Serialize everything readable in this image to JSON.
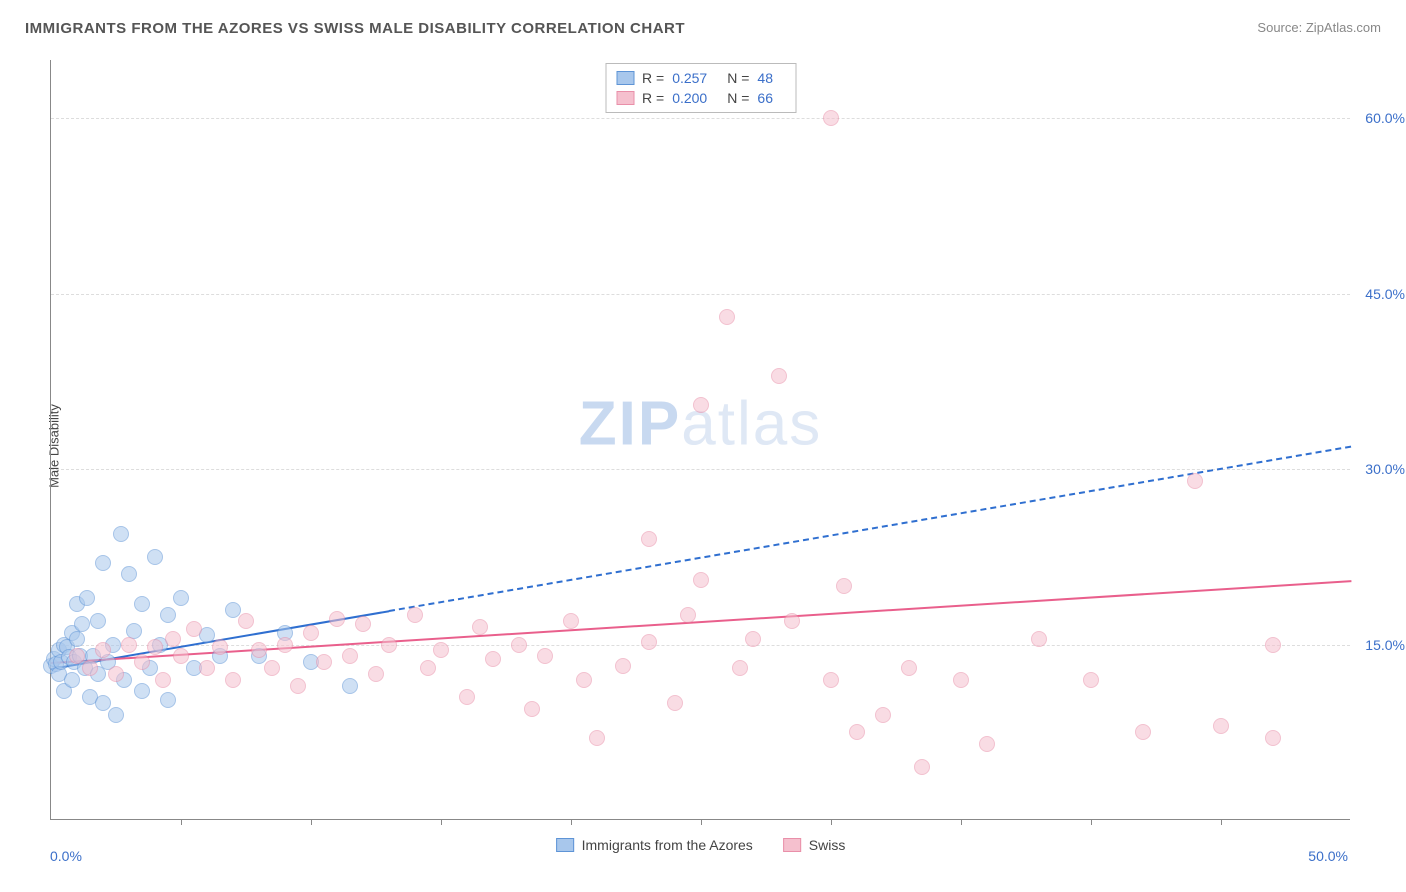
{
  "title": "IMMIGRANTS FROM THE AZORES VS SWISS MALE DISABILITY CORRELATION CHART",
  "source_label": "Source:",
  "source_name": "ZipAtlas.com",
  "ylabel": "Male Disability",
  "watermark_a": "ZIP",
  "watermark_b": "atlas",
  "chart": {
    "type": "scatter",
    "xlim": [
      0,
      50
    ],
    "ylim": [
      0,
      65
    ],
    "x_start_label": "0.0%",
    "x_end_label": "50.0%",
    "xtick_positions_pct": [
      10,
      20,
      30,
      40,
      50,
      60,
      70,
      80,
      90
    ],
    "y_gridlines": [
      15,
      30,
      45,
      60
    ],
    "y_labels": [
      "15.0%",
      "30.0%",
      "45.0%",
      "60.0%"
    ],
    "background_color": "#ffffff",
    "grid_color": "#dddddd",
    "axis_color": "#888888",
    "tick_label_color": "#3b6fc9",
    "marker_radius": 8,
    "marker_opacity": 0.55,
    "series": [
      {
        "name": "Immigrants from the Azores",
        "fill": "#a8c7ec",
        "stroke": "#5e94d6",
        "R": "0.257",
        "N": "48",
        "trend": {
          "x1": 0,
          "y1": 13.0,
          "x2": 50,
          "y2": 32.0,
          "solid_until_x": 13,
          "color": "#2f6fd0",
          "width": 2.5,
          "dash": "6,5"
        },
        "points": [
          [
            0.0,
            13.2
          ],
          [
            0.1,
            13.8
          ],
          [
            0.2,
            13.3
          ],
          [
            0.3,
            14.5
          ],
          [
            0.3,
            12.5
          ],
          [
            0.4,
            13.5
          ],
          [
            0.5,
            15.0
          ],
          [
            0.5,
            11.0
          ],
          [
            0.6,
            14.8
          ],
          [
            0.7,
            13.9
          ],
          [
            0.8,
            12.0
          ],
          [
            0.8,
            16.0
          ],
          [
            0.9,
            13.5
          ],
          [
            1.0,
            15.5
          ],
          [
            1.0,
            18.5
          ],
          [
            1.1,
            14.0
          ],
          [
            1.2,
            16.8
          ],
          [
            1.3,
            13.0
          ],
          [
            1.4,
            19.0
          ],
          [
            1.5,
            10.5
          ],
          [
            1.6,
            14.0
          ],
          [
            1.8,
            12.5
          ],
          [
            1.8,
            17.0
          ],
          [
            2.0,
            22.0
          ],
          [
            2.0,
            10.0
          ],
          [
            2.2,
            13.5
          ],
          [
            2.4,
            15.0
          ],
          [
            2.5,
            9.0
          ],
          [
            2.7,
            24.5
          ],
          [
            2.8,
            12.0
          ],
          [
            3.0,
            21.0
          ],
          [
            3.2,
            16.2
          ],
          [
            3.5,
            11.0
          ],
          [
            3.5,
            18.5
          ],
          [
            3.8,
            13.0
          ],
          [
            4.0,
            22.5
          ],
          [
            4.2,
            15.0
          ],
          [
            4.5,
            17.5
          ],
          [
            4.5,
            10.3
          ],
          [
            5.0,
            19.0
          ],
          [
            5.5,
            13.0
          ],
          [
            6.0,
            15.8
          ],
          [
            6.5,
            14.0
          ],
          [
            7.0,
            18.0
          ],
          [
            8.0,
            14.0
          ],
          [
            9.0,
            16.0
          ],
          [
            10.0,
            13.5
          ],
          [
            11.5,
            11.5
          ]
        ]
      },
      {
        "name": "Swiss",
        "fill": "#f5c0ce",
        "stroke": "#e98fa9",
        "R": "0.200",
        "N": "66",
        "trend": {
          "x1": 0,
          "y1": 13.5,
          "x2": 50,
          "y2": 20.5,
          "solid_until_x": 50,
          "color": "#e95f8c",
          "width": 2.5,
          "dash": ""
        },
        "points": [
          [
            1.0,
            14.0
          ],
          [
            1.5,
            13.0
          ],
          [
            2.0,
            14.5
          ],
          [
            2.5,
            12.5
          ],
          [
            3.0,
            15.0
          ],
          [
            3.5,
            13.5
          ],
          [
            4.0,
            14.8
          ],
          [
            4.3,
            12.0
          ],
          [
            4.7,
            15.5
          ],
          [
            5.0,
            14.0
          ],
          [
            5.5,
            16.3
          ],
          [
            6.0,
            13.0
          ],
          [
            6.5,
            14.8
          ],
          [
            7.0,
            12.0
          ],
          [
            7.5,
            17.0
          ],
          [
            8.0,
            14.5
          ],
          [
            8.5,
            13.0
          ],
          [
            9.0,
            15.0
          ],
          [
            9.5,
            11.5
          ],
          [
            10.0,
            16.0
          ],
          [
            10.5,
            13.5
          ],
          [
            11.0,
            17.2
          ],
          [
            11.5,
            14.0
          ],
          [
            12.0,
            16.8
          ],
          [
            12.5,
            12.5
          ],
          [
            13.0,
            15.0
          ],
          [
            14.0,
            17.5
          ],
          [
            14.5,
            13.0
          ],
          [
            15.0,
            14.5
          ],
          [
            16.0,
            10.5
          ],
          [
            16.5,
            16.5
          ],
          [
            17.0,
            13.8
          ],
          [
            18.0,
            15.0
          ],
          [
            18.5,
            9.5
          ],
          [
            19.0,
            14.0
          ],
          [
            20.0,
            17.0
          ],
          [
            20.5,
            12.0
          ],
          [
            21.0,
            7.0
          ],
          [
            22.0,
            13.2
          ],
          [
            23.0,
            24.0
          ],
          [
            23.0,
            15.2
          ],
          [
            24.0,
            10.0
          ],
          [
            24.5,
            17.5
          ],
          [
            25.0,
            35.5
          ],
          [
            25.0,
            20.5
          ],
          [
            26.0,
            43.0
          ],
          [
            26.5,
            13.0
          ],
          [
            27.0,
            15.5
          ],
          [
            28.0,
            38.0
          ],
          [
            28.5,
            17.0
          ],
          [
            30.0,
            12.0
          ],
          [
            30.0,
            60.0
          ],
          [
            30.5,
            20.0
          ],
          [
            31.0,
            7.5
          ],
          [
            32.0,
            9.0
          ],
          [
            33.0,
            13.0
          ],
          [
            33.5,
            4.5
          ],
          [
            35.0,
            12.0
          ],
          [
            36.0,
            6.5
          ],
          [
            38.0,
            15.5
          ],
          [
            40.0,
            12.0
          ],
          [
            42.0,
            7.5
          ],
          [
            44.0,
            29.0
          ],
          [
            45.0,
            8.0
          ],
          [
            47.0,
            15.0
          ],
          [
            47.0,
            7.0
          ]
        ]
      }
    ]
  },
  "legend_top": {
    "R_label": "R =",
    "N_label": "N ="
  }
}
